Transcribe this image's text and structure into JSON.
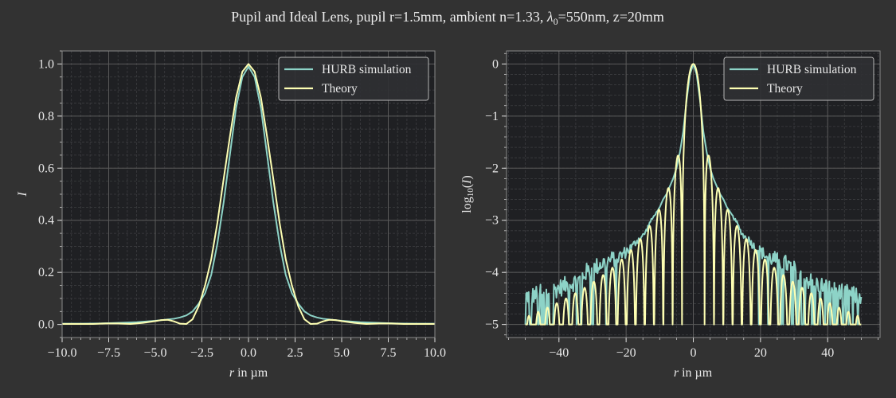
{
  "title": {
    "prefix": "Pupil and Ideal Lens, pupil r=1.5mm, ambient n=1.33, ",
    "lambda": "λ",
    "lambda_sub": "0",
    "suffix": "=550nm, z=20mm"
  },
  "colors": {
    "figure_bg": "#323232",
    "axes_bg": "#1f2023",
    "hurb": "#8dd3c7",
    "theory": "#feffb3",
    "grid_major": "#5a5a5a",
    "grid_minor": "#3c3d40"
  },
  "chart_data": [
    {
      "type": "line",
      "title": "",
      "xlabel_italic": "r",
      "xlabel_rest": " in µm",
      "ylabel": "I",
      "xlim": [
        -10,
        10
      ],
      "ylim": [
        -0.05,
        1.05
      ],
      "grid": true,
      "legend_placement": "top-right",
      "xticks": [
        -10,
        -7.5,
        -5,
        -2.5,
        0,
        2.5,
        5,
        7.5,
        10
      ],
      "xtick_labels": [
        "−10.0",
        "−7.5",
        "−5.0",
        "−2.5",
        "0.0",
        "2.5",
        "5.0",
        "7.5",
        "10.0"
      ],
      "yticks": [
        0,
        0.2,
        0.4,
        0.6,
        0.8,
        1.0
      ],
      "ytick_labels": [
        "0.0",
        "0.2",
        "0.4",
        "0.6",
        "0.8",
        "1.0"
      ],
      "x_minor_step": 0.5,
      "y_minor_step": 0.05,
      "series": [
        {
          "name": "HURB simulation",
          "x": [
            -10,
            -9,
            -8,
            -7,
            -6,
            -5,
            -4.5,
            -4,
            -3.67,
            -3.33,
            -3,
            -2.67,
            -2.33,
            -2,
            -1.67,
            -1.33,
            -1,
            -0.67,
            -0.33,
            0,
            0.33,
            0.67,
            1,
            1.33,
            1.67,
            2,
            2.33,
            2.67,
            3,
            3.33,
            3.67,
            4,
            4.5,
            5,
            6,
            7,
            8,
            9,
            10
          ],
          "y": [
            0.003,
            0.003,
            0.004,
            0.006,
            0.009,
            0.014,
            0.018,
            0.022,
            0.027,
            0.035,
            0.05,
            0.08,
            0.12,
            0.19,
            0.31,
            0.47,
            0.65,
            0.83,
            0.95,
            0.99,
            0.95,
            0.83,
            0.65,
            0.47,
            0.31,
            0.19,
            0.12,
            0.08,
            0.05,
            0.035,
            0.027,
            0.022,
            0.018,
            0.014,
            0.009,
            0.006,
            0.004,
            0.003,
            0.003
          ]
        },
        {
          "name": "Theory",
          "x": [
            -10,
            -9,
            -8.33,
            -7.67,
            -7,
            -6.33,
            -5.67,
            -5,
            -4.67,
            -4.33,
            -4,
            -3.67,
            -3.33,
            -3,
            -2.67,
            -2.33,
            -2,
            -1.67,
            -1.33,
            -1,
            -0.67,
            -0.33,
            0,
            0.33,
            0.67,
            1,
            1.33,
            1.67,
            2,
            2.33,
            2.67,
            3,
            3.33,
            3.67,
            4,
            4.33,
            4.67,
            5,
            5.67,
            6.33,
            7,
            7.67,
            8.33,
            9,
            10
          ],
          "y": [
            0.002,
            0.002,
            0.002,
            0.004,
            0.004,
            0.002,
            0.006,
            0.013,
            0.017,
            0.018,
            0.012,
            0.003,
            0.002,
            0.02,
            0.07,
            0.15,
            0.25,
            0.39,
            0.56,
            0.72,
            0.87,
            0.97,
            1.0,
            0.97,
            0.87,
            0.72,
            0.56,
            0.39,
            0.25,
            0.15,
            0.07,
            0.02,
            0.002,
            0.003,
            0.012,
            0.018,
            0.017,
            0.013,
            0.006,
            0.002,
            0.004,
            0.004,
            0.002,
            0.002,
            0.002
          ]
        }
      ]
    },
    {
      "type": "line",
      "title": "",
      "xlabel_italic": "r",
      "xlabel_rest": " in µm",
      "ylabel_pre": "log",
      "ylabel_sub": "10",
      "ylabel_open": "(",
      "ylabel_var": "I",
      "ylabel_close": ")",
      "xlim": [
        -55.6,
        55.6
      ],
      "ylim": [
        -5.25,
        0.25
      ],
      "grid": true,
      "legend_placement": "top-right",
      "xticks": [
        -40,
        -20,
        0,
        20,
        40
      ],
      "xtick_labels": [
        "−40",
        "−20",
        "0",
        "20",
        "40"
      ],
      "yticks": [
        0,
        -1,
        -2,
        -3,
        -4,
        -5
      ],
      "ytick_labels": [
        "0",
        "−1",
        "−2",
        "−3",
        "−4",
        "−5"
      ],
      "x_minor_step": 5,
      "y_minor_step": 0.2,
      "series": [
        {
          "name": "HURB simulation",
          "kind": "envelope_with_noise",
          "x": [
            -50,
            -48,
            -46,
            -44,
            -42,
            -40,
            -38,
            -36,
            -34,
            -32,
            -30,
            -28,
            -26,
            -24,
            -22,
            -20,
            -19,
            -18,
            -17,
            -16,
            -15,
            -14,
            -13,
            -12,
            -11,
            -10,
            -9,
            -8,
            -7,
            -6,
            -5,
            -4,
            -3,
            -2,
            -1,
            0,
            1,
            2,
            3,
            4,
            5,
            6,
            7,
            8,
            9,
            10,
            11,
            12,
            13,
            14,
            15,
            16,
            17,
            18,
            19,
            20,
            22,
            24,
            26,
            28,
            30,
            32,
            34,
            36,
            38,
            40,
            42,
            44,
            46,
            48,
            50
          ],
          "y": [
            -4.45,
            -4.45,
            -4.4,
            -4.4,
            -4.35,
            -4.3,
            -4.25,
            -4.2,
            -4.15,
            -4.0,
            -3.95,
            -3.85,
            -3.8,
            -3.75,
            -3.7,
            -3.6,
            -3.55,
            -3.5,
            -3.4,
            -3.35,
            -3.3,
            -3.2,
            -3.05,
            -2.95,
            -2.85,
            -2.75,
            -2.6,
            -2.5,
            -2.35,
            -2.2,
            -2.0,
            -1.7,
            -1.3,
            -0.7,
            -0.2,
            0,
            -0.2,
            -0.7,
            -1.3,
            -1.7,
            -2.0,
            -2.2,
            -2.35,
            -2.5,
            -2.6,
            -2.75,
            -2.85,
            -2.95,
            -3.05,
            -3.2,
            -3.3,
            -3.35,
            -3.4,
            -3.5,
            -3.55,
            -3.6,
            -3.7,
            -3.75,
            -3.8,
            -3.85,
            -3.95,
            -4.0,
            -4.15,
            -4.2,
            -4.25,
            -4.3,
            -4.35,
            -4.4,
            -4.4,
            -4.45,
            -4.45
          ],
          "floor": -5
        },
        {
          "name": "Theory",
          "kind": "airy_log10",
          "x_range": [
            -50,
            50
          ],
          "v_per_um": 1.139,
          "floor": -5
        }
      ]
    }
  ]
}
